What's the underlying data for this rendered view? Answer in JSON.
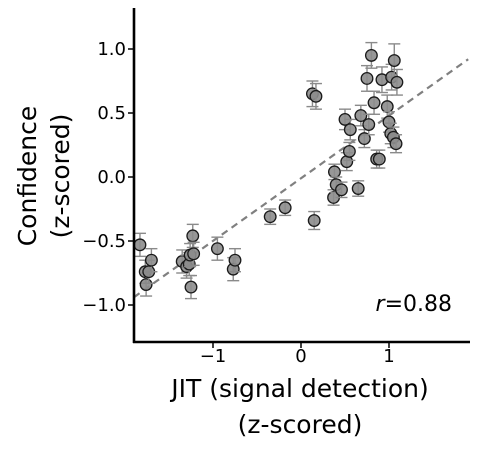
{
  "chart_data": {
    "type": "scatter",
    "xlabel": [
      "JIT (signal detection)",
      "(z-scored)"
    ],
    "ylabel": [
      "Confidence",
      "(z-scored)"
    ],
    "xlim": [
      -1.9,
      1.9
    ],
    "ylim": [
      -1.3,
      1.3
    ],
    "x_ticks": [
      -1,
      0,
      1
    ],
    "x_tick_labels": [
      "−1",
      "0",
      "1"
    ],
    "y_ticks": [
      1.0,
      0.5,
      0.0,
      -0.5,
      -1.0
    ],
    "y_tick_labels": [
      "1.0",
      "0.5",
      "0.0",
      "−0.5",
      "−1.0"
    ],
    "annotation": {
      "italic": "r",
      "text": "=0.88"
    },
    "grid": false,
    "fit_line": {
      "x": [
        -1.9,
        1.9
      ],
      "y": [
        -0.94,
        0.92
      ],
      "style": "dashed",
      "color": "#808080"
    },
    "colors": {
      "marker_fill": "#8c8c8c",
      "marker_edge": "#1a1a1a",
      "errorbar": "#8a8a8a"
    },
    "points": [
      {
        "x": -1.83,
        "y": -0.53,
        "err": 0.09
      },
      {
        "x": -1.77,
        "y": -0.74,
        "err": 0.09
      },
      {
        "x": -1.76,
        "y": -0.84,
        "err": 0.09
      },
      {
        "x": -1.73,
        "y": -0.74,
        "err": 0.09
      },
      {
        "x": -1.7,
        "y": -0.65,
        "err": 0.09
      },
      {
        "x": -1.35,
        "y": -0.66,
        "err": 0.09
      },
      {
        "x": -1.3,
        "y": -0.7,
        "err": 0.09
      },
      {
        "x": -1.27,
        "y": -0.68,
        "err": 0.09
      },
      {
        "x": -1.26,
        "y": -0.61,
        "err": 0.09
      },
      {
        "x": -1.25,
        "y": -0.86,
        "err": 0.09
      },
      {
        "x": -1.23,
        "y": -0.46,
        "err": 0.09
      },
      {
        "x": -1.22,
        "y": -0.6,
        "err": 0.09
      },
      {
        "x": -0.95,
        "y": -0.56,
        "err": 0.09
      },
      {
        "x": -0.77,
        "y": -0.72,
        "err": 0.09
      },
      {
        "x": -0.75,
        "y": -0.65,
        "err": 0.09
      },
      {
        "x": -0.35,
        "y": -0.31,
        "err": 0.06
      },
      {
        "x": -0.18,
        "y": -0.24,
        "err": 0.06
      },
      {
        "x": 0.15,
        "y": -0.34,
        "err": 0.07
      },
      {
        "x": 0.13,
        "y": 0.65,
        "err": 0.1
      },
      {
        "x": 0.17,
        "y": 0.63,
        "err": 0.1
      },
      {
        "x": 0.37,
        "y": -0.16,
        "err": 0.06
      },
      {
        "x": 0.38,
        "y": 0.04,
        "err": 0.06
      },
      {
        "x": 0.4,
        "y": -0.06,
        "err": 0.06
      },
      {
        "x": 0.46,
        "y": -0.1,
        "err": 0.06
      },
      {
        "x": 0.5,
        "y": 0.45,
        "err": 0.08
      },
      {
        "x": 0.52,
        "y": 0.12,
        "err": 0.07
      },
      {
        "x": 0.55,
        "y": 0.2,
        "err": 0.07
      },
      {
        "x": 0.56,
        "y": 0.37,
        "err": 0.08
      },
      {
        "x": 0.65,
        "y": -0.09,
        "err": 0.06
      },
      {
        "x": 0.68,
        "y": 0.48,
        "err": 0.08
      },
      {
        "x": 0.72,
        "y": 0.3,
        "err": 0.07
      },
      {
        "x": 0.75,
        "y": 0.77,
        "err": 0.1
      },
      {
        "x": 0.77,
        "y": 0.41,
        "err": 0.08
      },
      {
        "x": 0.8,
        "y": 0.95,
        "err": 0.1
      },
      {
        "x": 0.83,
        "y": 0.58,
        "err": 0.09
      },
      {
        "x": 0.86,
        "y": 0.14,
        "err": 0.07
      },
      {
        "x": 0.89,
        "y": 0.14,
        "err": 0.07
      },
      {
        "x": 0.92,
        "y": 0.76,
        "err": 0.1
      },
      {
        "x": 0.98,
        "y": 0.55,
        "err": 0.09
      },
      {
        "x": 1.0,
        "y": 0.43,
        "err": 0.08
      },
      {
        "x": 1.02,
        "y": 0.34,
        "err": 0.08
      },
      {
        "x": 1.03,
        "y": 0.78,
        "err": 0.1
      },
      {
        "x": 1.05,
        "y": 0.31,
        "err": 0.08
      },
      {
        "x": 1.06,
        "y": 0.91,
        "err": 0.13
      },
      {
        "x": 1.08,
        "y": 0.26,
        "err": 0.07
      },
      {
        "x": 1.09,
        "y": 0.74,
        "err": 0.1
      }
    ]
  }
}
